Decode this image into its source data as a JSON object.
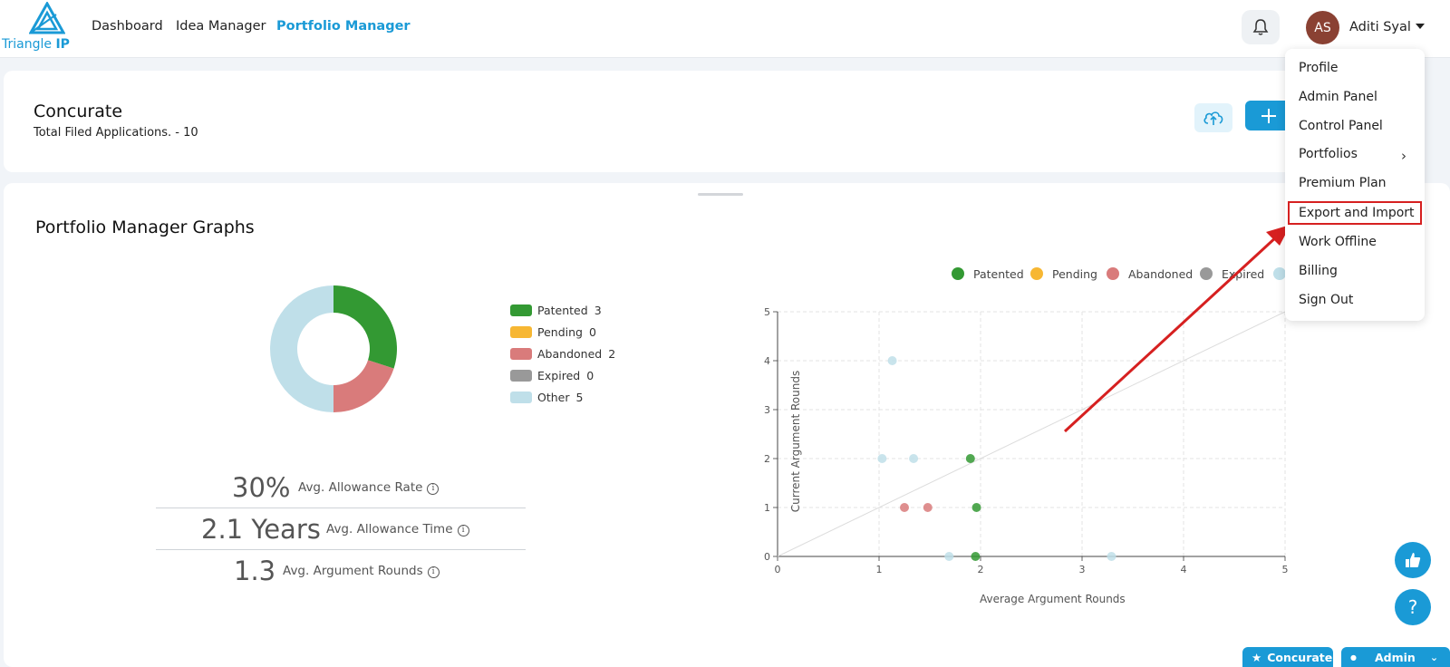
{
  "brand": {
    "name_light": "Triangle",
    "name_bold": "IP",
    "color": "#1a9ad6"
  },
  "nav": {
    "links": [
      "Dashboard",
      "Idea Manager",
      "Portfolio Manager"
    ],
    "active": "Portfolio Manager"
  },
  "user": {
    "initials": "AS",
    "name": "Aditi Syal"
  },
  "header": {
    "title": "Concurate",
    "subtitle": "Total Filed Applications. - 10"
  },
  "graphs": {
    "title": "Portfolio Manager Graphs",
    "donut_legend": [
      {
        "label": "Patented",
        "count": "3",
        "color": "#339933"
      },
      {
        "label": "Pending",
        "count": "0",
        "color": "#f7b733"
      },
      {
        "label": "Abandoned",
        "count": "2",
        "color": "#d97b7b"
      },
      {
        "label": "Expired",
        "count": "0",
        "color": "#999999"
      },
      {
        "label": "Other",
        "count": "5",
        "color": "#bfdfe9"
      }
    ],
    "stats": [
      {
        "value": "30%",
        "label": "Avg. Allowance Rate"
      },
      {
        "value": "2.1 Years",
        "label": "Avg. Allowance Time"
      },
      {
        "value": "1.3",
        "label": "Avg. Argument Rounds"
      }
    ],
    "scatter_legend": [
      {
        "label": "Patented",
        "color": "#339933"
      },
      {
        "label": "Pending",
        "color": "#f7b733"
      },
      {
        "label": "Abandoned",
        "color": "#d97b7b"
      },
      {
        "label": "Expired",
        "color": "#999999"
      },
      {
        "label": "",
        "color": "#bfdfe9"
      }
    ]
  },
  "chart_data": [
    {
      "type": "pie",
      "labels": [
        "Patented",
        "Pending",
        "Abandoned",
        "Expired",
        "Other"
      ],
      "values": [
        3,
        0,
        2,
        0,
        5
      ],
      "colors": [
        "#339933",
        "#f7b733",
        "#d97b7b",
        "#999999",
        "#bfdfe9"
      ]
    },
    {
      "type": "scatter",
      "xlabel": "Average Argument Rounds",
      "ylabel": "Current Argument Rounds",
      "xlim": [
        0,
        5
      ],
      "ylim": [
        0,
        5
      ],
      "xticks": [
        "0",
        "1",
        "2",
        "3",
        "4",
        "5"
      ],
      "yticks": [
        "0",
        "1",
        "2",
        "3",
        "4",
        "5"
      ],
      "grid": true,
      "reference_line": {
        "from": [
          0,
          0
        ],
        "to": [
          5,
          5
        ]
      },
      "series": [
        {
          "name": "Patented",
          "color": "#339933",
          "points": [
            [
              1.9,
              2
            ],
            [
              1.96,
              1
            ],
            [
              1.95,
              0
            ]
          ]
        },
        {
          "name": "Pending",
          "color": "#f7b733",
          "points": []
        },
        {
          "name": "Abandoned",
          "color": "#d97b7b",
          "points": [
            [
              1.25,
              1
            ],
            [
              1.48,
              1
            ]
          ]
        },
        {
          "name": "Expired",
          "color": "#999999",
          "points": []
        },
        {
          "name": "Other",
          "color": "#bfdfe9",
          "points": [
            [
              1.13,
              4
            ],
            [
              1.03,
              2
            ],
            [
              1.34,
              2
            ],
            [
              1.69,
              0
            ],
            [
              3.29,
              0
            ]
          ]
        }
      ]
    }
  ],
  "menu": {
    "items": [
      "Profile",
      "Admin Panel",
      "Control Panel",
      "Portfolios",
      "Premium Plan",
      "Export and Import",
      "Work Offline",
      "Billing",
      "Sign Out"
    ],
    "highlighted": "Export and Import",
    "highlight_color": "#d62020"
  },
  "footer": {
    "project_pill": "Concurate",
    "role_pill": "Admin"
  },
  "help": {
    "label": "?"
  }
}
